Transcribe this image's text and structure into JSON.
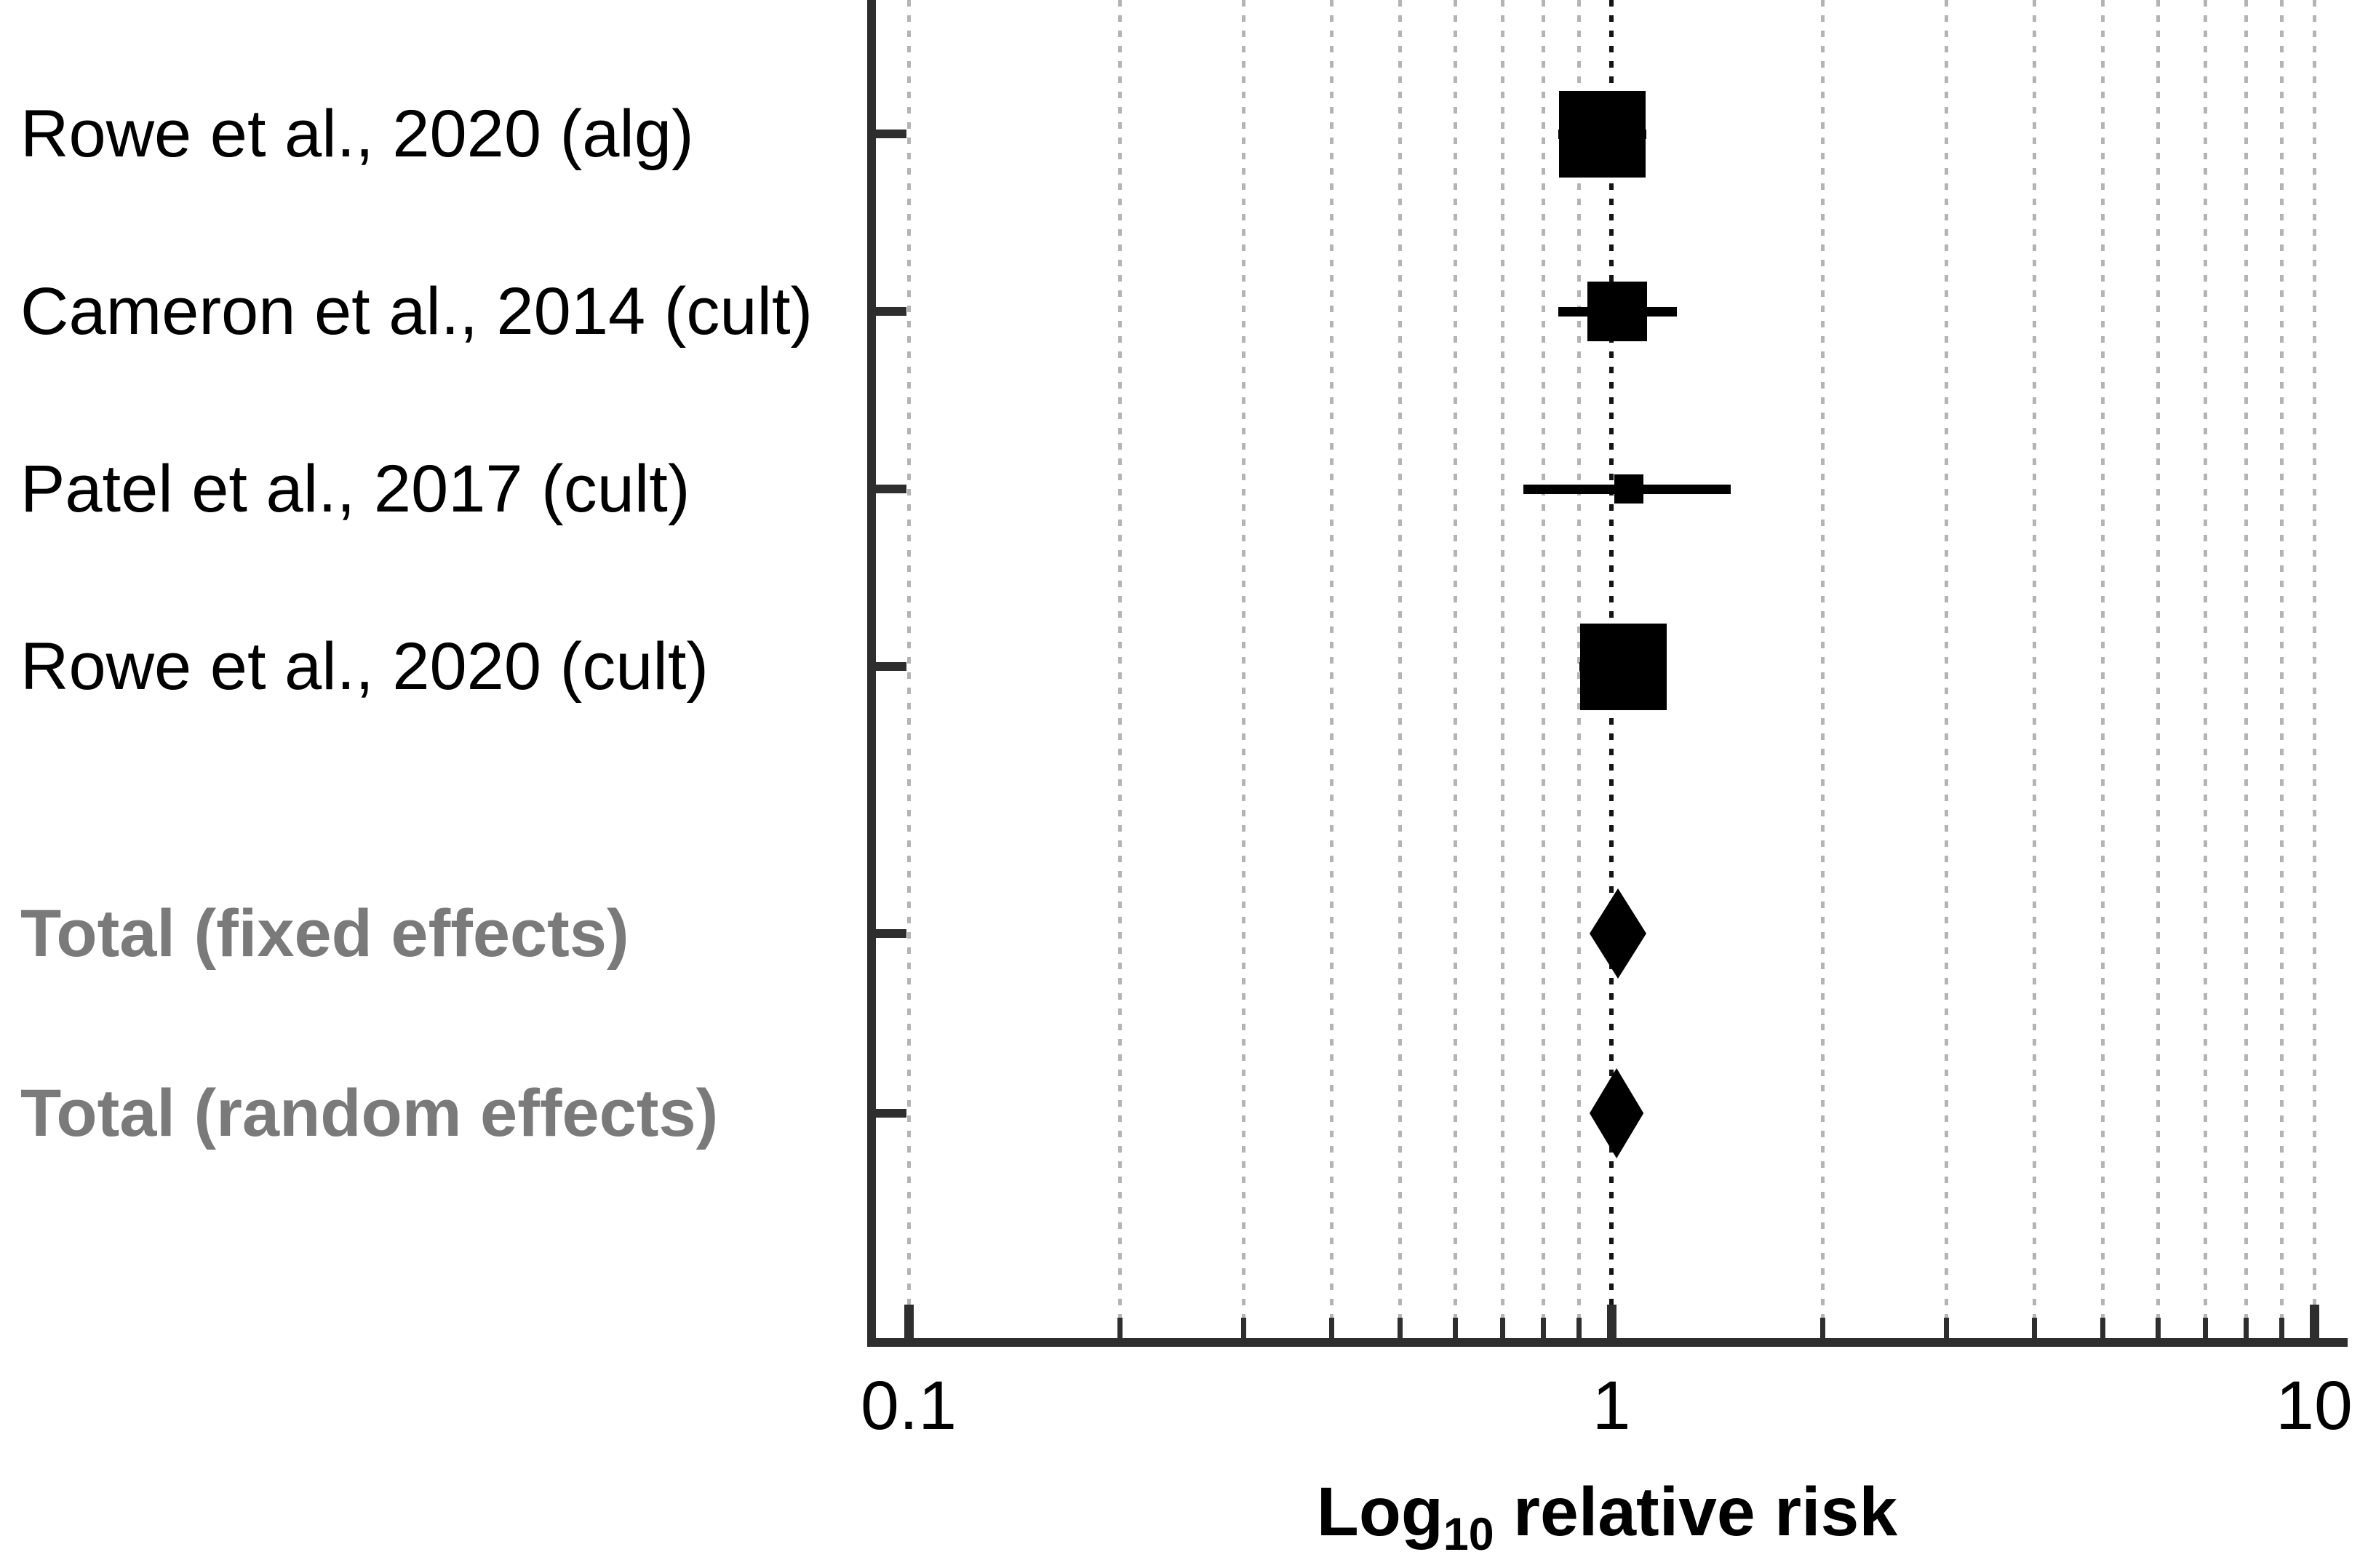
{
  "chart_data": {
    "type": "forest",
    "title": "",
    "xlabel": {
      "prefix": "Log",
      "sub": "10",
      "suffix": " relative risk"
    },
    "x_axis": {
      "scale": "log10",
      "range": [
        0.088,
        11.2
      ],
      "major_ticks": [
        {
          "value": 0.1,
          "label": "0.1"
        },
        {
          "value": 1,
          "label": "1"
        },
        {
          "value": 10,
          "label": "10"
        }
      ],
      "minor_ticks": [
        0.2,
        0.3,
        0.4,
        0.5,
        0.6,
        0.7,
        0.8,
        0.9,
        2,
        3,
        4,
        5,
        6,
        7,
        8,
        9
      ],
      "reference_value": 1,
      "grid": "dotted-vertical"
    },
    "studies": [
      {
        "label": "Rowe et al., 2020 (alg)",
        "estimate": 0.97,
        "ci_low": 0.84,
        "ci_high": 1.12,
        "marker_size_px": 119
      },
      {
        "label": "Cameron et al., 2014 (cult)",
        "estimate": 1.02,
        "ci_low": 0.84,
        "ci_high": 1.24,
        "marker_size_px": 82
      },
      {
        "label": "Patel et al., 2017 (cult)",
        "estimate": 1.06,
        "ci_low": 0.75,
        "ci_high": 1.48,
        "marker_size_px": 40
      },
      {
        "label": "Rowe et al., 2020 (cult)",
        "estimate": 1.04,
        "ci_low": 0.9,
        "ci_high": 1.2,
        "marker_size_px": 119
      }
    ],
    "totals": [
      {
        "label": "Total (fixed effects)",
        "estimate": 1.02,
        "ci_low": 0.93,
        "ci_high": 1.12,
        "marker": "diamond"
      },
      {
        "label": "Total (random effects)",
        "estimate": 1.02,
        "ci_low": 0.93,
        "ci_high": 1.11,
        "marker": "diamond"
      }
    ],
    "colors": {
      "marker": "#000000",
      "study_label": "#000000",
      "total_label": "#7a7a7a",
      "axis": "#2e2e2e",
      "gridline": "#b4b4b4",
      "reference_gridline": "#141414"
    },
    "legend": null
  }
}
